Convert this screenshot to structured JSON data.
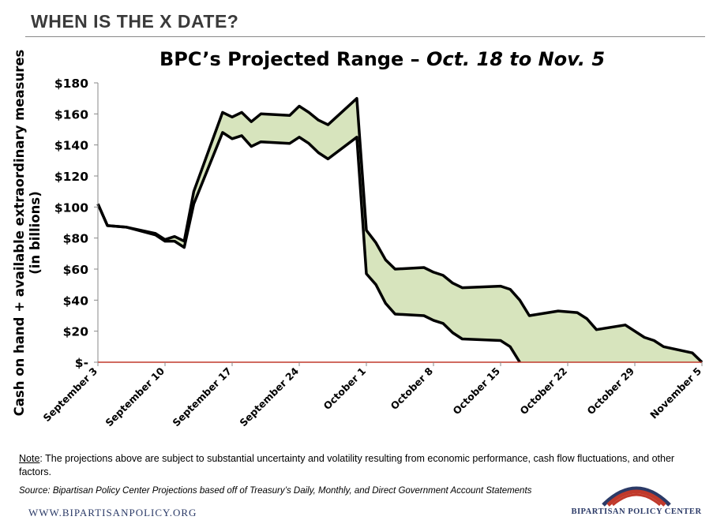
{
  "header": {
    "title": "WHEN IS THE X DATE?"
  },
  "note": {
    "label": "Note",
    "text": ": The projections above are subject to substantial uncertainty and volatility resulting from economic performance, cash flow fluctuations, and other factors."
  },
  "source": "Source: Bipartisan Policy Center Projections based off of Treasury’s Daily, Monthly, and Direct Government Account Statements",
  "website": "WWW.BIPARTISANPOLICY.ORG",
  "logo_text": "BIPARTISAN POLICY CENTER",
  "colors": {
    "fill": "#d7e4bd",
    "line": "#000000",
    "zero_line": "#c0392b",
    "logo_red": "#c0392b",
    "logo_blue": "#2b3a67"
  },
  "chart_data": {
    "type": "area",
    "title_main": "BPC’s Projected Range – ",
    "title_italic": "Oct. 18 to Nov. 5",
    "ylabel_line1": "Cash on hand + available extraordinary measures",
    "ylabel_line2": "(in billions)",
    "xlabel": "",
    "ylim": [
      0,
      180
    ],
    "xlim": [
      0,
      63
    ],
    "yticks": [
      {
        "value": 0,
        "label": "$-"
      },
      {
        "value": 20,
        "label": "$20"
      },
      {
        "value": 40,
        "label": "$40"
      },
      {
        "value": 60,
        "label": "$60"
      },
      {
        "value": 80,
        "label": "$80"
      },
      {
        "value": 100,
        "label": "$100"
      },
      {
        "value": 120,
        "label": "$120"
      },
      {
        "value": 140,
        "label": "$140"
      },
      {
        "value": 160,
        "label": "$160"
      },
      {
        "value": 180,
        "label": "$180"
      }
    ],
    "xticks": [
      {
        "day": 0,
        "label": "September 3"
      },
      {
        "day": 7,
        "label": "September 10"
      },
      {
        "day": 14,
        "label": "September 17"
      },
      {
        "day": 21,
        "label": "September 24"
      },
      {
        "day": 28,
        "label": "October 1"
      },
      {
        "day": 35,
        "label": "October 8"
      },
      {
        "day": 42,
        "label": "October 15"
      },
      {
        "day": 49,
        "label": "October 22"
      },
      {
        "day": 56,
        "label": "October 29"
      },
      {
        "day": 63,
        "label": "November 5"
      }
    ],
    "series": [
      {
        "points": [
          [
            0,
            102
          ],
          [
            1,
            88
          ],
          [
            3,
            87
          ],
          [
            6,
            83
          ],
          [
            7,
            79
          ],
          [
            8,
            81
          ],
          [
            9,
            78
          ],
          [
            10,
            110
          ],
          [
            13,
            161
          ],
          [
            14,
            158
          ],
          [
            15,
            161
          ],
          [
            16,
            155
          ],
          [
            17,
            160
          ],
          [
            20,
            159
          ],
          [
            21,
            165
          ],
          [
            22,
            161
          ],
          [
            23,
            156
          ],
          [
            24,
            153
          ],
          [
            27,
            170
          ],
          [
            28,
            85
          ],
          [
            29,
            77
          ],
          [
            30,
            66
          ],
          [
            31,
            60
          ],
          [
            34,
            61
          ],
          [
            35,
            58
          ],
          [
            36,
            56
          ],
          [
            37,
            51
          ],
          [
            38,
            48
          ],
          [
            42,
            49
          ],
          [
            43,
            47
          ],
          [
            44,
            40
          ],
          [
            45,
            30
          ],
          [
            48,
            33
          ],
          [
            50,
            32
          ],
          [
            51,
            28
          ],
          [
            52,
            21
          ],
          [
            55,
            24
          ],
          [
            57,
            16
          ],
          [
            58,
            14
          ],
          [
            59,
            10
          ],
          [
            62,
            6
          ],
          [
            63,
            0
          ]
        ]
      },
      {
        "points": [
          [
            0,
            102
          ],
          [
            1,
            88
          ],
          [
            3,
            87
          ],
          [
            6,
            82
          ],
          [
            7,
            78
          ],
          [
            8,
            78
          ],
          [
            9,
            74
          ],
          [
            10,
            102
          ],
          [
            13,
            148
          ],
          [
            14,
            144
          ],
          [
            15,
            146
          ],
          [
            16,
            139
          ],
          [
            17,
            142
          ],
          [
            20,
            141
          ],
          [
            21,
            145
          ],
          [
            22,
            141
          ],
          [
            23,
            135
          ],
          [
            24,
            131
          ],
          [
            27,
            145
          ],
          [
            28,
            57
          ],
          [
            29,
            50
          ],
          [
            30,
            38
          ],
          [
            31,
            31
          ],
          [
            34,
            30
          ],
          [
            35,
            27
          ],
          [
            36,
            25
          ],
          [
            37,
            19
          ],
          [
            38,
            15
          ],
          [
            42,
            14
          ],
          [
            43,
            10
          ],
          [
            44,
            0
          ]
        ]
      }
    ]
  }
}
